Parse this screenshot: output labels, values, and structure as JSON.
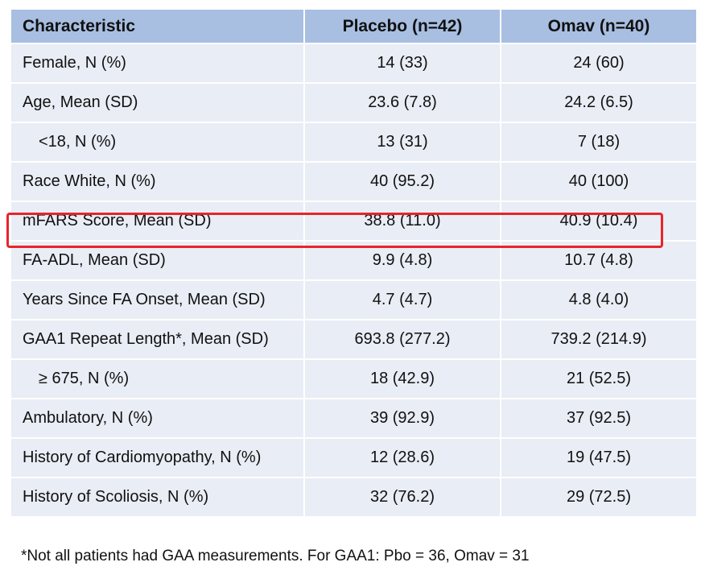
{
  "table": {
    "headers": [
      "Characteristic",
      "Placebo (n=42)",
      "Omav (n=40)"
    ],
    "rows": [
      {
        "label": "Female, N (%)",
        "placebo": "14 (33)",
        "omav": "24 (60)"
      },
      {
        "label": "Age, Mean (SD)",
        "placebo": "23.6 (7.8)",
        "omav": "24.2 (6.5)"
      },
      {
        "label": "<18, N (%)",
        "placebo": "13 (31)",
        "omav": "7 (18)"
      },
      {
        "label": "Race White, N (%)",
        "placebo": "40 (95.2)",
        "omav": "40 (100)"
      },
      {
        "label": "mFARS Score, Mean (SD)",
        "placebo": "38.8 (11.0)",
        "omav": "40.9 (10.4)"
      },
      {
        "label": "FA-ADL, Mean (SD)",
        "placebo": "9.9 (4.8)",
        "omav": "10.7 (4.8)"
      },
      {
        "label": "Years Since FA Onset, Mean (SD)",
        "placebo": "4.7 (4.7)",
        "omav": "4.8 (4.0)"
      },
      {
        "label": "GAA1 Repeat Length*, Mean (SD)",
        "placebo": "693.8 (277.2)",
        "omav": "739.2 (214.9)"
      },
      {
        "label": "≥ 675, N (%)",
        "placebo": "18 (42.9)",
        "omav": "21 (52.5)"
      },
      {
        "label": "Ambulatory, N (%)",
        "placebo": "39 (92.9)",
        "omav": "37 (92.5)"
      },
      {
        "label": "History of Cardiomyopathy, N (%)",
        "placebo": "12 (28.6)",
        "omav": "19 (47.5)"
      },
      {
        "label": "History of Scoliosis, N (%)",
        "placebo": "32 (76.2)",
        "omav": "29 (72.5)"
      }
    ]
  },
  "footnote": "*Not all patients had GAA measurements. For GAA1: Pbo = 36, Omav = 31",
  "colors": {
    "header_bg": "#a8bfe2",
    "row_bg": "#e9edf5",
    "highlight_border": "#e8242a"
  }
}
